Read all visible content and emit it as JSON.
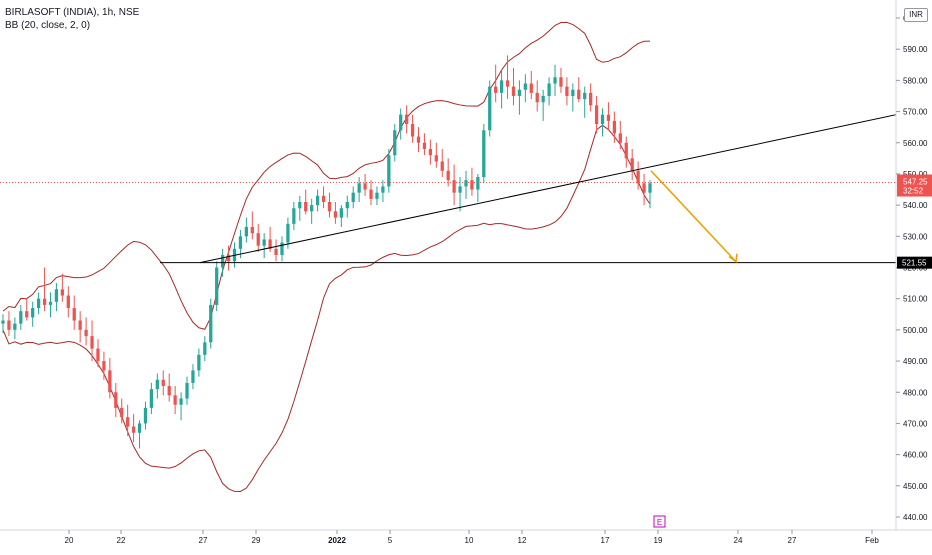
{
  "header": {
    "symbol_line": "BIRLASOFT (INDIA), 1h, NSE",
    "indicator_line": "BB (20, close, 2, 0)",
    "currency": "INR"
  },
  "price_axis": {
    "ticks": [
      "600.00",
      "590.00",
      "580.00",
      "570.00",
      "560.00",
      "550.00",
      "540.00",
      "530.00",
      "520.00",
      "510.00",
      "500.00",
      "490.00",
      "480.00",
      "470.00",
      "460.00",
      "450.00",
      "440.00"
    ],
    "last_price_label": "547.25",
    "countdown_label": "32:52",
    "level_label": "521.55"
  },
  "time_axis": {
    "ticks": [
      "20",
      "22",
      "27",
      "29",
      "2022",
      "5",
      "10",
      "12",
      "17",
      "19",
      "24",
      "27",
      "Feb"
    ]
  },
  "event_marker": "E",
  "chart_data": {
    "type": "candlestick",
    "title": "BIRLASOFT (INDIA), 1h, NSE",
    "indicator": "BB (20, close, 2, 0)",
    "ylim": [
      436,
      603
    ],
    "colors": {
      "up": "#26a69a",
      "down": "#ef5350",
      "bands": "#a52a2a",
      "trendline": "#000000",
      "projection": "#f0a000",
      "last_price": "#ef5350"
    },
    "last_price": 547.25,
    "support_level": 521.55,
    "candles_ohlc": [
      [
        502,
        505,
        499,
        503
      ],
      [
        503,
        506,
        498,
        500
      ],
      [
        500,
        504,
        497,
        502
      ],
      [
        502,
        508,
        500,
        506
      ],
      [
        506,
        510,
        503,
        504
      ],
      [
        504,
        509,
        501,
        507
      ],
      [
        507,
        512,
        505,
        510
      ],
      [
        510,
        520,
        506,
        508
      ],
      [
        508,
        512,
        504,
        509
      ],
      [
        509,
        515,
        506,
        513
      ],
      [
        513,
        518,
        509,
        511
      ],
      [
        511,
        514,
        504,
        507
      ],
      [
        507,
        511,
        500,
        503
      ],
      [
        503,
        506,
        496,
        500
      ],
      [
        500,
        504,
        495,
        498
      ],
      [
        498,
        503,
        490,
        494
      ],
      [
        494,
        497,
        488,
        490
      ],
      [
        490,
        493,
        484,
        487
      ],
      [
        487,
        491,
        478,
        480
      ],
      [
        480,
        483,
        472,
        475
      ],
      [
        475,
        478,
        470,
        472
      ],
      [
        472,
        476,
        466,
        469
      ],
      [
        469,
        473,
        464,
        467
      ],
      [
        467,
        471,
        462,
        470
      ],
      [
        470,
        477,
        468,
        475
      ],
      [
        475,
        483,
        473,
        481
      ],
      [
        481,
        486,
        478,
        484
      ],
      [
        484,
        487,
        479,
        482
      ],
      [
        482,
        486,
        477,
        479
      ],
      [
        479,
        482,
        473,
        476
      ],
      [
        476,
        480,
        471,
        478
      ],
      [
        478,
        485,
        476,
        483
      ],
      [
        483,
        489,
        481,
        487
      ],
      [
        487,
        494,
        485,
        492
      ],
      [
        492,
        498,
        490,
        496
      ],
      [
        496,
        510,
        494,
        508
      ],
      [
        508,
        522,
        506,
        520
      ],
      [
        520,
        526,
        517,
        524
      ],
      [
        524,
        527,
        519,
        522
      ],
      [
        522,
        528,
        520,
        526
      ],
      [
        526,
        532,
        523,
        530
      ],
      [
        530,
        536,
        528,
        533
      ],
      [
        533,
        538,
        529,
        531
      ],
      [
        531,
        534,
        525,
        527
      ],
      [
        527,
        531,
        523,
        529
      ],
      [
        529,
        533,
        525,
        526
      ],
      [
        526,
        529,
        522,
        524
      ],
      [
        524,
        530,
        522,
        528
      ],
      [
        528,
        536,
        526,
        534
      ],
      [
        534,
        541,
        532,
        539
      ],
      [
        539,
        543,
        535,
        541
      ],
      [
        541,
        545,
        537,
        538
      ],
      [
        538,
        542,
        534,
        540
      ],
      [
        540,
        545,
        538,
        543
      ],
      [
        543,
        546,
        539,
        541
      ],
      [
        541,
        544,
        536,
        538
      ],
      [
        538,
        541,
        534,
        536
      ],
      [
        536,
        540,
        533,
        539
      ],
      [
        539,
        543,
        536,
        541
      ],
      [
        541,
        546,
        539,
        544
      ],
      [
        544,
        549,
        541,
        547
      ],
      [
        547,
        550,
        543,
        545
      ],
      [
        545,
        548,
        540,
        542
      ],
      [
        542,
        546,
        540,
        544
      ],
      [
        544,
        548,
        541,
        546
      ],
      [
        546,
        558,
        544,
        556
      ],
      [
        556,
        566,
        554,
        564
      ],
      [
        564,
        571,
        561,
        569
      ],
      [
        569,
        572,
        563,
        566
      ],
      [
        566,
        569,
        560,
        562
      ],
      [
        562,
        565,
        557,
        560
      ],
      [
        560,
        563,
        556,
        558
      ],
      [
        558,
        561,
        553,
        556
      ],
      [
        556,
        560,
        552,
        554
      ],
      [
        554,
        558,
        549,
        551
      ],
      [
        551,
        555,
        546,
        548
      ],
      [
        548,
        553,
        540,
        544
      ],
      [
        544,
        549,
        538,
        546
      ],
      [
        546,
        551,
        542,
        548
      ],
      [
        548,
        552,
        543,
        545
      ],
      [
        545,
        550,
        541,
        549
      ],
      [
        549,
        566,
        547,
        564
      ],
      [
        564,
        580,
        562,
        578
      ],
      [
        578,
        585,
        573,
        576
      ],
      [
        576,
        583,
        571,
        580
      ],
      [
        580,
        588,
        574,
        578
      ],
      [
        578,
        584,
        572,
        575
      ],
      [
        575,
        580,
        569,
        577
      ],
      [
        577,
        582,
        573,
        579
      ],
      [
        579,
        583,
        574,
        576
      ],
      [
        576,
        580,
        570,
        573
      ],
      [
        573,
        577,
        567,
        575
      ],
      [
        575,
        581,
        572,
        579
      ],
      [
        579,
        585,
        575,
        581
      ],
      [
        581,
        584,
        576,
        578
      ],
      [
        578,
        581,
        572,
        575
      ],
      [
        575,
        579,
        570,
        577
      ],
      [
        577,
        581,
        573,
        574
      ],
      [
        574,
        578,
        568,
        576
      ],
      [
        576,
        579,
        570,
        572
      ],
      [
        572,
        575,
        563,
        566
      ],
      [
        566,
        571,
        562,
        569
      ],
      [
        569,
        573,
        564,
        567
      ],
      [
        567,
        570,
        560,
        563
      ],
      [
        563,
        567,
        558,
        560
      ],
      [
        560,
        562,
        552,
        555
      ],
      [
        555,
        558,
        548,
        551
      ],
      [
        551,
        554,
        545,
        547
      ],
      [
        547,
        550,
        540,
        544
      ],
      [
        544,
        548,
        539,
        547
      ]
    ]
  }
}
